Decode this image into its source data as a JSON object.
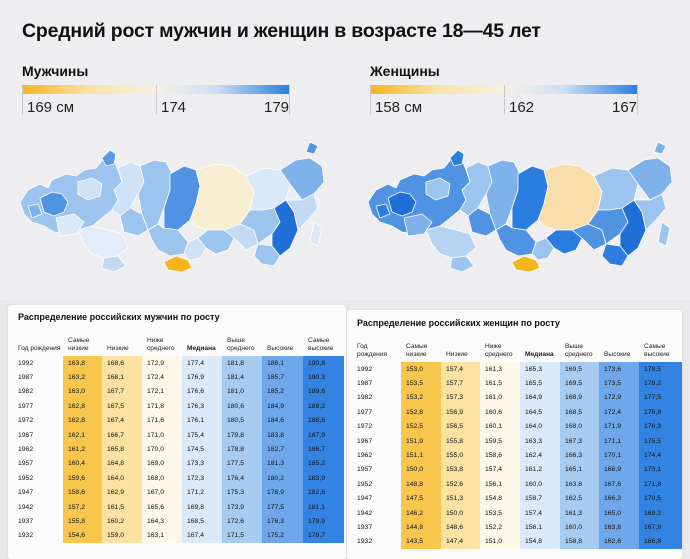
{
  "title": "Средний рост мужчин и женщин в возрасте 18—45 лет",
  "men": {
    "label": "Мужчины",
    "scale": {
      "min_label": "169 см",
      "mid_label": "174",
      "max_label": "179"
    }
  },
  "women": {
    "label": "Женщины",
    "scale": {
      "min_label": "158 см",
      "mid_label": "162",
      "max_label": "167"
    }
  },
  "colors": {
    "low": "#f5b51c",
    "pale_yellow": "#f8efd2",
    "pale_blue": "#dae7f6",
    "mid_blue": "#9cc4ee",
    "high": "#2b7de0"
  },
  "men_table": {
    "title": "Распределение российских мужчин по росту",
    "headers": [
      "Год рождения",
      "Самые низкие",
      "Низкие",
      "Ниже среднего",
      "Медиана",
      "Выше среднего",
      "Высокие",
      "Самые высокие"
    ],
    "rows": [
      [
        "1992",
        "163,8",
        "168,6",
        "172,9",
        "177,4",
        "181,8",
        "186,1",
        "190,8"
      ],
      [
        "1987",
        "163,2",
        "168,1",
        "172,4",
        "176,9",
        "181,4",
        "185,7",
        "190,3"
      ],
      [
        "1982",
        "163,0",
        "167,7",
        "172,1",
        "176,6",
        "181,0",
        "185,2",
        "189,6"
      ],
      [
        "1977",
        "162,8",
        "167,5",
        "171,8",
        "176,3",
        "180,6",
        "184,9",
        "189,2"
      ],
      [
        "1972",
        "162,8",
        "167,4",
        "171,6",
        "176,1",
        "180,5",
        "184,6",
        "188,6"
      ],
      [
        "1967",
        "162,1",
        "166,7",
        "171,0",
        "175,4",
        "179,8",
        "183,8",
        "187,9"
      ],
      [
        "1962",
        "161,2",
        "165,8",
        "170,0",
        "174,5",
        "178,8",
        "182,7",
        "186,7"
      ],
      [
        "1957",
        "160,4",
        "164,8",
        "169,0",
        "173,3",
        "177,5",
        "181,3",
        "185,2"
      ],
      [
        "1952",
        "159,6",
        "164,0",
        "168,0",
        "172,3",
        "176,4",
        "180,2",
        "183,9"
      ],
      [
        "1947",
        "158,6",
        "162,9",
        "167,0",
        "171,2",
        "175,3",
        "178,9",
        "182,6"
      ],
      [
        "1942",
        "157,2",
        "161,5",
        "165,6",
        "169,8",
        "173,9",
        "177,5",
        "181,1"
      ],
      [
        "1937",
        "155,8",
        "160,2",
        "164,3",
        "168,5",
        "172,6",
        "176,3",
        "179,9"
      ],
      [
        "1932",
        "154,6",
        "159,0",
        "163,1",
        "167,4",
        "171,5",
        "175,2",
        "178,7"
      ]
    ]
  },
  "women_table": {
    "title": "Распределение российских женщин по росту",
    "headers": [
      "Год рождения",
      "Самые низкие",
      "Низкие",
      "Ниже среднего",
      "Медиана",
      "Выше среднего",
      "Высокие",
      "Самые высокие"
    ],
    "rows": [
      [
        "1992",
        "153,0",
        "157,4",
        "161,3",
        "165,3",
        "169,5",
        "173,6",
        "178,5"
      ],
      [
        "1987",
        "153,5",
        "157,7",
        "161,5",
        "165,5",
        "169,5",
        "173,5",
        "178,2"
      ],
      [
        "1982",
        "153,2",
        "157,3",
        "161,0",
        "164,9",
        "168,9",
        "172,9",
        "177,5"
      ],
      [
        "1977",
        "152,8",
        "156,9",
        "160,6",
        "164,5",
        "168,5",
        "172,4",
        "176,9"
      ],
      [
        "1972",
        "152,5",
        "156,5",
        "160,1",
        "164,0",
        "168,0",
        "171,9",
        "176,3"
      ],
      [
        "1967",
        "151,9",
        "155,8",
        "159,5",
        "163,3",
        "167,3",
        "171,1",
        "175,5"
      ],
      [
        "1962",
        "151,1",
        "155,0",
        "158,6",
        "162,4",
        "166,3",
        "170,1",
        "174,4"
      ],
      [
        "1957",
        "150,0",
        "153,8",
        "157,4",
        "161,2",
        "165,1",
        "168,9",
        "173,1"
      ],
      [
        "1952",
        "148,8",
        "152,6",
        "156,1",
        "160,0",
        "163,8",
        "167,6",
        "171,8"
      ],
      [
        "1947",
        "147,5",
        "151,3",
        "154,8",
        "158,7",
        "162,5",
        "166,3",
        "170,5"
      ],
      [
        "1942",
        "146,2",
        "150,0",
        "153,5",
        "157,4",
        "161,3",
        "165,0",
        "169,2"
      ],
      [
        "1937",
        "144,8",
        "148,6",
        "152,2",
        "156,1",
        "160,0",
        "163,8",
        "167,9"
      ],
      [
        "1932",
        "143,5",
        "147,4",
        "151,0",
        "154,8",
        "158,8",
        "162,6",
        "166,8"
      ]
    ]
  }
}
